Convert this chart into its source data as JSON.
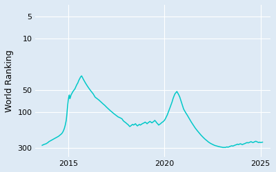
{
  "ylabel": "World Ranking",
  "line_color": "#00c8c8",
  "bg_color": "#deeaf5",
  "fig_bg_color": "#deeaf5",
  "yticks": [
    5,
    10,
    50,
    100,
    300
  ],
  "ytick_labels": [
    "5",
    "10",
    "50",
    "100",
    "300"
  ],
  "xticks": [
    2015,
    2020,
    2025
  ],
  "xlim": [
    2013.3,
    2025.5
  ],
  "ylim_log": [
    3.5,
    400
  ],
  "linewidth": 1.1,
  "data": [
    [
      2013.65,
      278
    ],
    [
      2013.75,
      270
    ],
    [
      2013.85,
      265
    ],
    [
      2013.95,
      255
    ],
    [
      2014.0,
      248
    ],
    [
      2014.1,
      240
    ],
    [
      2014.2,
      232
    ],
    [
      2014.3,
      225
    ],
    [
      2014.4,
      218
    ],
    [
      2014.5,
      210
    ],
    [
      2014.55,
      205
    ],
    [
      2014.6,
      200
    ],
    [
      2014.65,
      195
    ],
    [
      2014.7,
      188
    ],
    [
      2014.75,
      178
    ],
    [
      2014.8,
      165
    ],
    [
      2014.85,
      148
    ],
    [
      2014.9,
      128
    ],
    [
      2014.93,
      108
    ],
    [
      2014.96,
      88
    ],
    [
      2015.0,
      70
    ],
    [
      2015.03,
      62
    ],
    [
      2015.06,
      58
    ],
    [
      2015.09,
      65
    ],
    [
      2015.12,
      62
    ],
    [
      2015.15,
      58
    ],
    [
      2015.2,
      55
    ],
    [
      2015.25,
      52
    ],
    [
      2015.3,
      50
    ],
    [
      2015.35,
      48
    ],
    [
      2015.4,
      45
    ],
    [
      2015.45,
      42
    ],
    [
      2015.5,
      40
    ],
    [
      2015.55,
      37
    ],
    [
      2015.6,
      35
    ],
    [
      2015.65,
      33
    ],
    [
      2015.7,
      32
    ],
    [
      2015.75,
      34
    ],
    [
      2015.8,
      36
    ],
    [
      2015.85,
      38
    ],
    [
      2015.9,
      40
    ],
    [
      2015.95,
      42
    ],
    [
      2016.0,
      44
    ],
    [
      2016.1,
      48
    ],
    [
      2016.2,
      52
    ],
    [
      2016.3,
      56
    ],
    [
      2016.4,
      62
    ],
    [
      2016.5,
      65
    ],
    [
      2016.6,
      68
    ],
    [
      2016.7,
      72
    ],
    [
      2016.8,
      76
    ],
    [
      2016.9,
      80
    ],
    [
      2017.0,
      85
    ],
    [
      2017.1,
      90
    ],
    [
      2017.2,
      95
    ],
    [
      2017.3,
      100
    ],
    [
      2017.4,
      105
    ],
    [
      2017.5,
      110
    ],
    [
      2017.6,
      115
    ],
    [
      2017.7,
      118
    ],
    [
      2017.8,
      122
    ],
    [
      2017.85,
      128
    ],
    [
      2017.9,
      132
    ],
    [
      2017.95,
      135
    ],
    [
      2018.0,
      138
    ],
    [
      2018.05,
      142
    ],
    [
      2018.1,
      145
    ],
    [
      2018.15,
      150
    ],
    [
      2018.2,
      155
    ],
    [
      2018.25,
      152
    ],
    [
      2018.3,
      148
    ],
    [
      2018.35,
      145
    ],
    [
      2018.4,
      148
    ],
    [
      2018.45,
      145
    ],
    [
      2018.5,
      142
    ],
    [
      2018.55,
      148
    ],
    [
      2018.6,
      152
    ],
    [
      2018.65,
      148
    ],
    [
      2018.7,
      145
    ],
    [
      2018.75,
      148
    ],
    [
      2018.8,
      145
    ],
    [
      2018.85,
      142
    ],
    [
      2018.9,
      140
    ],
    [
      2018.95,
      138
    ],
    [
      2019.0,
      135
    ],
    [
      2019.05,
      138
    ],
    [
      2019.1,
      142
    ],
    [
      2019.15,
      138
    ],
    [
      2019.2,
      135
    ],
    [
      2019.25,
      132
    ],
    [
      2019.3,
      135
    ],
    [
      2019.35,
      138
    ],
    [
      2019.4,
      135
    ],
    [
      2019.45,
      132
    ],
    [
      2019.5,
      128
    ],
    [
      2019.55,
      132
    ],
    [
      2019.6,
      138
    ],
    [
      2019.65,
      142
    ],
    [
      2019.7,
      148
    ],
    [
      2019.75,
      145
    ],
    [
      2019.8,
      142
    ],
    [
      2019.85,
      138
    ],
    [
      2019.9,
      135
    ],
    [
      2019.95,
      132
    ],
    [
      2020.0,
      128
    ],
    [
      2020.05,
      122
    ],
    [
      2020.1,
      115
    ],
    [
      2020.15,
      108
    ],
    [
      2020.2,
      100
    ],
    [
      2020.25,
      92
    ],
    [
      2020.3,
      85
    ],
    [
      2020.35,
      78
    ],
    [
      2020.4,
      72
    ],
    [
      2020.45,
      65
    ],
    [
      2020.5,
      60
    ],
    [
      2020.55,
      56
    ],
    [
      2020.6,
      54
    ],
    [
      2020.65,
      52
    ],
    [
      2020.7,
      55
    ],
    [
      2020.75,
      58
    ],
    [
      2020.8,
      62
    ],
    [
      2020.85,
      68
    ],
    [
      2020.9,
      75
    ],
    [
      2020.95,
      82
    ],
    [
      2021.0,
      90
    ],
    [
      2021.1,
      100
    ],
    [
      2021.2,
      110
    ],
    [
      2021.3,
      122
    ],
    [
      2021.4,
      135
    ],
    [
      2021.5,
      148
    ],
    [
      2021.6,
      162
    ],
    [
      2021.7,
      175
    ],
    [
      2021.8,
      188
    ],
    [
      2021.9,
      202
    ],
    [
      2022.0,
      215
    ],
    [
      2022.1,
      228
    ],
    [
      2022.2,
      240
    ],
    [
      2022.3,
      252
    ],
    [
      2022.4,
      262
    ],
    [
      2022.5,
      270
    ],
    [
      2022.6,
      278
    ],
    [
      2022.7,
      283
    ],
    [
      2022.8,
      288
    ],
    [
      2022.9,
      292
    ],
    [
      2023.0,
      295
    ],
    [
      2023.05,
      298
    ],
    [
      2023.1,
      296
    ],
    [
      2023.15,
      298
    ],
    [
      2023.2,
      295
    ],
    [
      2023.25,
      292
    ],
    [
      2023.3,
      295
    ],
    [
      2023.35,
      292
    ],
    [
      2023.4,
      288
    ],
    [
      2023.45,
      285
    ],
    [
      2023.5,
      282
    ],
    [
      2023.55,
      285
    ],
    [
      2023.6,
      282
    ],
    [
      2023.65,
      278
    ],
    [
      2023.7,
      275
    ],
    [
      2023.75,
      272
    ],
    [
      2023.8,
      268
    ],
    [
      2023.85,
      272
    ],
    [
      2023.9,
      268
    ],
    [
      2023.95,
      265
    ],
    [
      2024.0,
      268
    ],
    [
      2024.05,
      272
    ],
    [
      2024.1,
      268
    ],
    [
      2024.15,
      265
    ],
    [
      2024.2,
      262
    ],
    [
      2024.25,
      258
    ],
    [
      2024.3,
      255
    ],
    [
      2024.35,
      258
    ],
    [
      2024.4,
      255
    ],
    [
      2024.45,
      252
    ],
    [
      2024.5,
      248
    ],
    [
      2024.55,
      252
    ],
    [
      2024.6,
      255
    ],
    [
      2024.65,
      252
    ],
    [
      2024.7,
      248
    ],
    [
      2024.75,
      245
    ],
    [
      2024.8,
      248
    ],
    [
      2024.85,
      252
    ],
    [
      2024.9,
      255
    ],
    [
      2024.95,
      252
    ],
    [
      2025.0,
      255
    ],
    [
      2025.1,
      252
    ]
  ]
}
